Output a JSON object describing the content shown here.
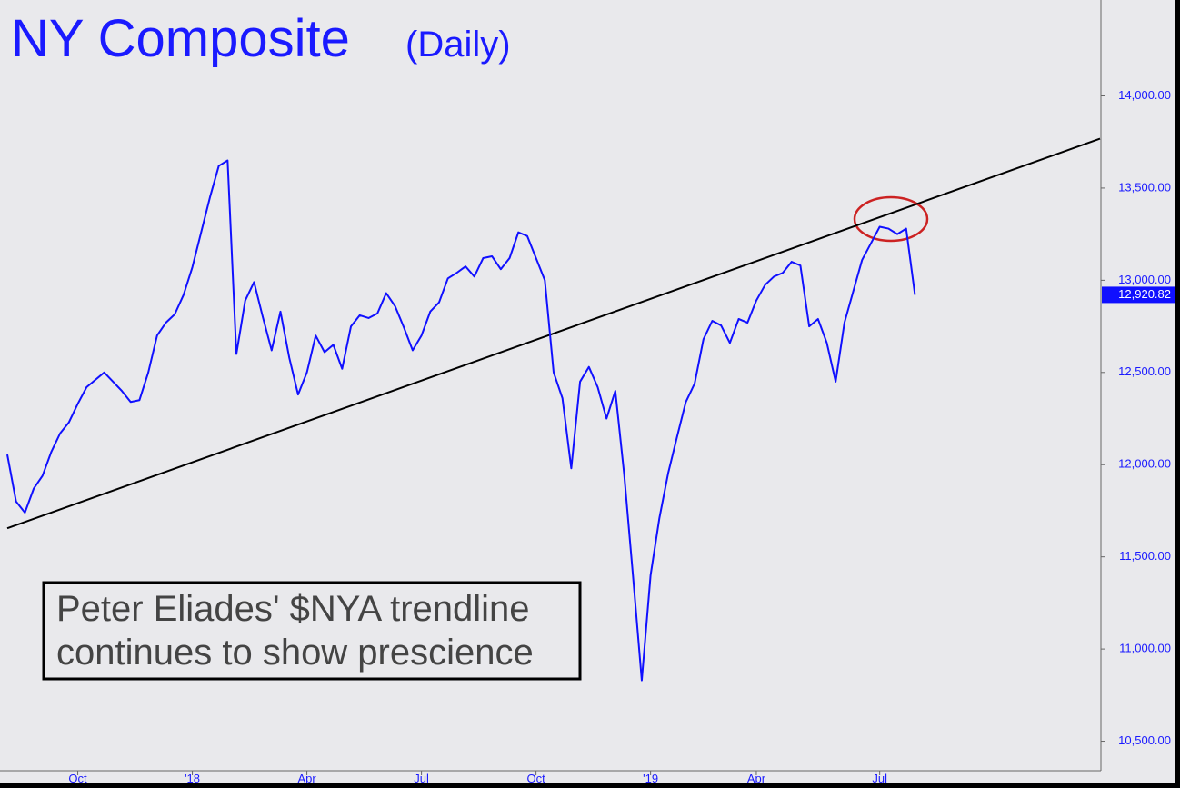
{
  "chart_data": {
    "type": "line",
    "title": "NY Composite",
    "subtitle": "(Daily)",
    "annotation": [
      "Peter Eliades' $NYA trendline",
      "continues to show prescience"
    ],
    "color": "#1010ff",
    "categories": [
      null,
      null,
      null,
      null,
      null,
      null,
      null,
      null,
      "Oct",
      null,
      null,
      null,
      null,
      null,
      null,
      null,
      null,
      null,
      null,
      null,
      null,
      "'18",
      null,
      null,
      null,
      null,
      null,
      null,
      null,
      null,
      null,
      null,
      null,
      null,
      "Apr",
      null,
      null,
      null,
      null,
      null,
      null,
      null,
      null,
      null,
      null,
      null,
      null,
      "Jul",
      null,
      null,
      null,
      null,
      null,
      null,
      null,
      null,
      null,
      null,
      null,
      null,
      "Oct",
      null,
      null,
      null,
      null,
      null,
      null,
      null,
      null,
      null,
      null,
      null,
      null,
      "'19",
      null,
      null,
      null,
      null,
      null,
      null,
      null,
      null,
      null,
      null,
      null,
      "Apr",
      null,
      null,
      null,
      null,
      null,
      null,
      null,
      null,
      null,
      null,
      null,
      null,
      null,
      "Jul",
      null,
      null,
      null,
      null,
      null,
      null,
      null,
      null,
      null,
      null,
      null,
      null,
      null,
      null,
      null,
      null,
      null,
      null,
      null,
      null,
      null,
      null,
      null,
      null,
      null
    ],
    "values": [
      12055,
      11800,
      11740,
      11870,
      11940,
      12070,
      12170,
      12230,
      12330,
      12420,
      12460,
      12500,
      12450,
      12400,
      12340,
      12350,
      12500,
      12700,
      12770,
      12815,
      12920,
      13070,
      13260,
      13450,
      13620,
      13650,
      12600,
      12890,
      12990,
      12800,
      12620,
      12830,
      12580,
      12380,
      12500,
      12700,
      12610,
      12650,
      12520,
      12750,
      12810,
      12795,
      12820,
      12930,
      12860,
      12745,
      12620,
      12700,
      12830,
      12880,
      13010,
      13040,
      13075,
      13020,
      13120,
      13130,
      13060,
      13120,
      13260,
      13240,
      13120,
      13000,
      12500,
      12360,
      11980,
      12450,
      12530,
      12420,
      12250,
      12400,
      11950,
      11400,
      10830,
      11400,
      11710,
      11955,
      12150,
      12340,
      12440,
      12680,
      12780,
      12755,
      12660,
      12790,
      12770,
      12890,
      12975,
      13020,
      13040,
      13100,
      13080,
      12750,
      12790,
      12660,
      12450,
      12770,
      12940,
      13110,
      13200,
      13290,
      13280,
      13250,
      13280,
      12920.82,
      null,
      null,
      null,
      null,
      null,
      null,
      null,
      null,
      null,
      null,
      null,
      null,
      null,
      null,
      null,
      null,
      null,
      null,
      null,
      null,
      null
    ],
    "trendline": {
      "values": [
        11655,
        13768
      ],
      "color": "#000000"
    },
    "last_label": {
      "value": 12920.82,
      "label": "12,920.82"
    },
    "ylim": [
      10340,
      14520
    ],
    "yticks": [
      {
        "value": 10500,
        "label": "10,500.00"
      },
      {
        "value": 11000,
        "label": "11,000.00"
      },
      {
        "value": 11500,
        "label": "11,500.00"
      },
      {
        "value": 12000,
        "label": "12,000.00"
      },
      {
        "value": 12500,
        "label": "12,500.00"
      },
      {
        "value": 13000,
        "label": "13,000.00"
      },
      {
        "value": 13500,
        "label": "13,500.00"
      },
      {
        "value": 14000,
        "label": "14,000.00"
      }
    ]
  }
}
